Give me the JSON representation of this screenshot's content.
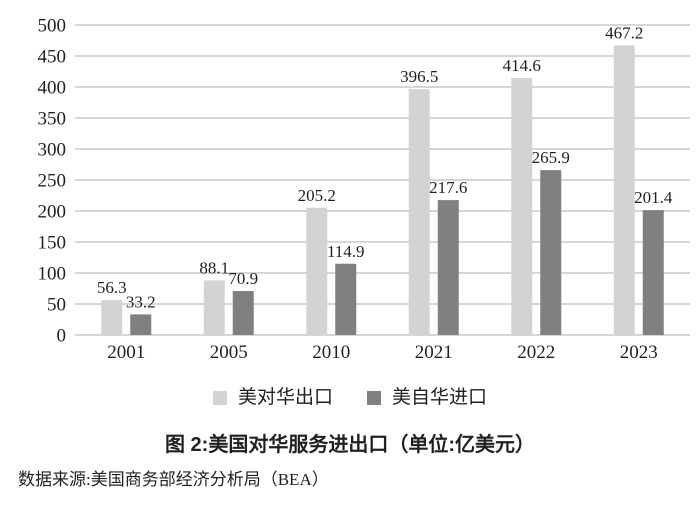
{
  "chart_data": {
    "type": "bar",
    "categories": [
      "2001",
      "2005",
      "2010",
      "2021",
      "2022",
      "2023"
    ],
    "series": [
      {
        "name": "美对华出口",
        "color": "#d3d3d3",
        "values": [
          56.3,
          88.1,
          205.2,
          396.5,
          414.6,
          467.2
        ]
      },
      {
        "name": "美自华进口",
        "color": "#808080",
        "values": [
          33.2,
          70.9,
          114.9,
          217.6,
          265.9,
          201.4
        ]
      }
    ],
    "title": "图 2:美国对华服务进出口（单位:亿美元）",
    "xlabel": "",
    "ylabel": "",
    "ylim": [
      0,
      500
    ],
    "ytick_step": 50,
    "grid": true,
    "gridline_color": "#b4abab",
    "axis_label_color": "#231f20",
    "value_label_color": "#231f20",
    "legend_position": "bottom",
    "data_labels": true
  },
  "title": "图 2:美国对华服务进出口（单位:亿美元）",
  "source": "数据来源:美国商务部经济分析局（BEA）"
}
